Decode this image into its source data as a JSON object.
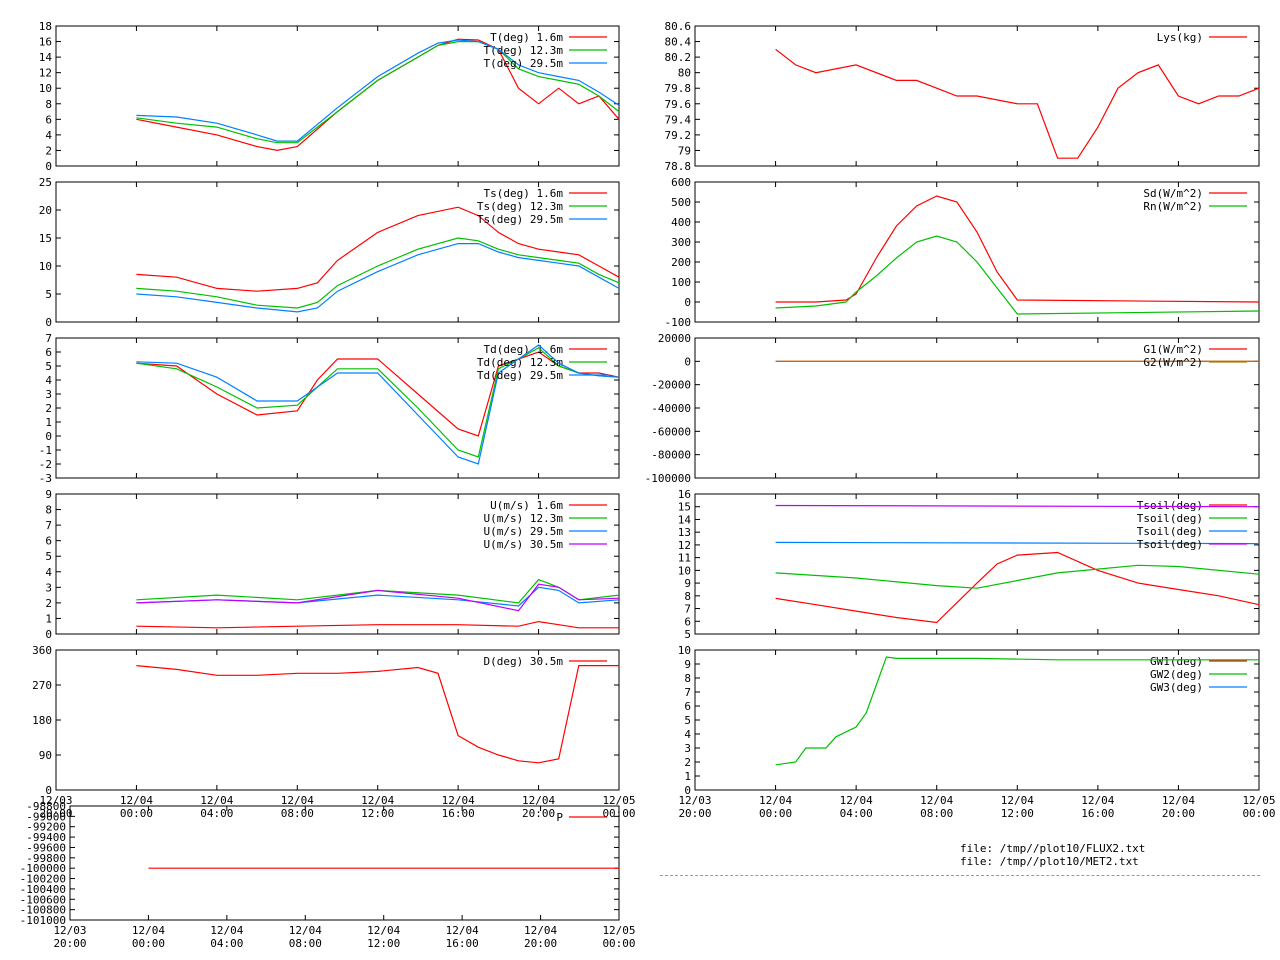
{
  "colors": {
    "red": "#ff0000",
    "green": "#00c000",
    "blue": "#0080ff",
    "purple": "#c000ff",
    "olive": "#a08000"
  },
  "x_ticks": {
    "dates": [
      "12/03",
      "12/04",
      "12/04",
      "12/04",
      "12/04",
      "12/04",
      "12/04",
      "12/05"
    ],
    "times": [
      "20:00",
      "00:00",
      "04:00",
      "08:00",
      "12:00",
      "16:00",
      "20:00",
      "00:00"
    ]
  },
  "files": [
    "file: /tmp//plot10/FLUX2.txt",
    "file: /tmp//plot10/MET2.txt"
  ],
  "chart_data": [
    {
      "id": "T",
      "type": "line",
      "ylim": [
        0,
        18
      ],
      "yticks": [
        "0",
        "2",
        "4",
        "6",
        "8",
        "10",
        "12",
        "14",
        "16",
        "18"
      ],
      "xlim": [
        0,
        28
      ],
      "series": [
        {
          "name": "T(deg)  1.6m",
          "color": "red",
          "x": [
            4,
            6,
            8,
            10,
            11,
            12,
            14,
            16,
            18,
            19,
            20,
            21,
            22,
            23,
            24,
            25,
            26,
            27,
            28
          ],
          "y": [
            6,
            5,
            4,
            2.5,
            2,
            2.5,
            7,
            11,
            14,
            15.5,
            16.3,
            16.2,
            15,
            10,
            8,
            10,
            8,
            9,
            6
          ]
        },
        {
          "name": "T(deg) 12.3m",
          "color": "green",
          "x": [
            4,
            6,
            8,
            10,
            11,
            12,
            14,
            16,
            18,
            19,
            20,
            21,
            22,
            23,
            24,
            25,
            26,
            27,
            28
          ],
          "y": [
            6.2,
            5.5,
            5,
            3.5,
            3,
            3,
            7,
            11,
            14,
            15.5,
            16,
            16,
            15,
            12.5,
            11.5,
            11,
            10.5,
            9,
            7
          ]
        },
        {
          "name": "T(deg) 29.5m",
          "color": "blue",
          "x": [
            4,
            6,
            8,
            10,
            11,
            12,
            14,
            16,
            18,
            19,
            20,
            21,
            22,
            23,
            24,
            25,
            26,
            27,
            28
          ],
          "y": [
            6.5,
            6.3,
            5.5,
            4,
            3.2,
            3.2,
            7.5,
            11.5,
            14.5,
            15.8,
            16.2,
            16,
            15,
            13,
            12,
            11.5,
            11,
            9.5,
            7.8
          ]
        }
      ]
    },
    {
      "id": "Ts",
      "type": "line",
      "ylim": [
        0,
        25
      ],
      "yticks": [
        "0",
        "5",
        "10",
        "15",
        "20",
        "25"
      ],
      "xlim": [
        0,
        28
      ],
      "series": [
        {
          "name": "Ts(deg)  1.6m",
          "color": "red",
          "x": [
            4,
            6,
            8,
            10,
            12,
            13,
            14,
            16,
            18,
            20,
            21,
            22,
            23,
            24,
            25,
            26,
            27,
            28
          ],
          "y": [
            8.5,
            8,
            6,
            5.5,
            6,
            7,
            11,
            16,
            19,
            20.5,
            19,
            16,
            14,
            13,
            12.5,
            12,
            10,
            8
          ]
        },
        {
          "name": "Ts(deg) 12.3m",
          "color": "green",
          "x": [
            4,
            6,
            8,
            10,
            12,
            13,
            14,
            16,
            18,
            20,
            21,
            22,
            23,
            24,
            25,
            26,
            27,
            28
          ],
          "y": [
            6,
            5.5,
            4.5,
            3,
            2.5,
            3.5,
            6.5,
            10,
            13,
            15,
            14.5,
            13,
            12,
            11.5,
            11,
            10.5,
            8.5,
            7
          ]
        },
        {
          "name": "Ts(deg) 29.5m",
          "color": "blue",
          "x": [
            4,
            6,
            8,
            10,
            12,
            13,
            14,
            16,
            18,
            20,
            21,
            22,
            23,
            24,
            25,
            26,
            27,
            28
          ],
          "y": [
            5,
            4.5,
            3.5,
            2.5,
            1.8,
            2.5,
            5.5,
            9,
            12,
            14,
            14,
            12.5,
            11.5,
            11,
            10.5,
            10,
            8,
            6
          ]
        }
      ]
    },
    {
      "id": "Td",
      "type": "line",
      "ylim": [
        -3,
        7
      ],
      "yticks": [
        "-3",
        "-2",
        "-1",
        "0",
        "1",
        "2",
        "3",
        "4",
        "5",
        "6",
        "7"
      ],
      "xlim": [
        0,
        28
      ],
      "series": [
        {
          "name": "Td(deg)  1.6m",
          "color": "red",
          "x": [
            4,
            6,
            8,
            10,
            12,
            13,
            14,
            16,
            18,
            20,
            21,
            22,
            23,
            24,
            25,
            26,
            27,
            28
          ],
          "y": [
            5.2,
            5,
            3,
            1.5,
            1.8,
            4,
            5.5,
            5.5,
            3,
            0.5,
            0,
            5,
            5.5,
            6,
            5,
            4.5,
            4.5,
            4.2
          ]
        },
        {
          "name": "Td(deg) 12.3m",
          "color": "green",
          "x": [
            4,
            6,
            8,
            10,
            12,
            13,
            14,
            16,
            18,
            20,
            21,
            22,
            23,
            24,
            25,
            26,
            27,
            28
          ],
          "y": [
            5.2,
            4.8,
            3.5,
            2,
            2.2,
            3.5,
            4.8,
            4.8,
            2,
            -1,
            -1.5,
            4.8,
            5.5,
            6.3,
            5,
            4.5,
            4.3,
            4.2
          ]
        },
        {
          "name": "Td(deg) 29.5m",
          "color": "blue",
          "x": [
            4,
            6,
            8,
            10,
            12,
            13,
            14,
            16,
            18,
            20,
            21,
            22,
            23,
            24,
            25,
            26,
            27,
            28
          ],
          "y": [
            5.3,
            5.2,
            4.2,
            2.5,
            2.5,
            3.5,
            4.5,
            4.5,
            1.5,
            -1.5,
            -2,
            4.5,
            5.5,
            6.5,
            5.2,
            4.5,
            4.3,
            4.2
          ]
        }
      ]
    },
    {
      "id": "U",
      "type": "line",
      "ylim": [
        0,
        9
      ],
      "yticks": [
        "0",
        "1",
        "2",
        "3",
        "4",
        "5",
        "6",
        "7",
        "8",
        "9"
      ],
      "xlim": [
        0,
        28
      ],
      "series": [
        {
          "name": "U(m/s)  1.6m",
          "color": "red",
          "x": [
            4,
            8,
            12,
            16,
            20,
            23,
            24,
            25,
            26,
            28
          ],
          "y": [
            0.5,
            0.4,
            0.5,
            0.6,
            0.6,
            0.5,
            0.8,
            0.6,
            0.4,
            0.4
          ]
        },
        {
          "name": "U(m/s) 12.3m",
          "color": "green",
          "x": [
            4,
            8,
            12,
            16,
            20,
            23,
            24,
            25,
            26,
            28
          ],
          "y": [
            2.2,
            2.5,
            2.2,
            2.8,
            2.5,
            2,
            3.5,
            3,
            2.2,
            2.5
          ]
        },
        {
          "name": "U(m/s) 29.5m",
          "color": "blue",
          "x": [
            4,
            8,
            12,
            16,
            20,
            23,
            24,
            25,
            26,
            28
          ],
          "y": [
            2,
            2.2,
            2,
            2.5,
            2.2,
            1.8,
            3,
            2.8,
            2,
            2.2
          ]
        },
        {
          "name": "U(m/s) 30.5m",
          "color": "purple",
          "x": [
            4,
            8,
            12,
            16,
            20,
            23,
            24,
            25,
            26,
            28
          ],
          "y": [
            2,
            2.2,
            2,
            2.8,
            2.3,
            1.5,
            3.2,
            3,
            2.2,
            2.3
          ]
        }
      ]
    },
    {
      "id": "D",
      "type": "line",
      "ylim": [
        0,
        360
      ],
      "yticks": [
        "0",
        "90",
        "180",
        "270",
        "360"
      ],
      "xlim": [
        0,
        28
      ],
      "series": [
        {
          "name": "D(deg)  30.5m",
          "color": "red",
          "x": [
            4,
            6,
            8,
            10,
            12,
            14,
            16,
            18,
            19,
            20,
            21,
            22,
            23,
            24,
            25,
            26,
            27,
            28
          ],
          "y": [
            320,
            310,
            295,
            295,
            300,
            300,
            305,
            315,
            300,
            140,
            110,
            90,
            75,
            70,
            80,
            320,
            320,
            320
          ]
        }
      ]
    },
    {
      "id": "P",
      "type": "line",
      "ylim": [
        -101000,
        -98800
      ],
      "yticks": [
        "-101000",
        "-100800",
        "-100600",
        "-100400",
        "-100200",
        "-100000",
        "-99800",
        "-99600",
        "-99400",
        "-99200",
        "-99000",
        "-98800"
      ],
      "xlim": [
        0,
        28
      ],
      "series": [
        {
          "name": "P",
          "color": "red",
          "x": [
            4,
            28
          ],
          "y": [
            -100000,
            -100000
          ]
        }
      ]
    },
    {
      "id": "Lys",
      "type": "line",
      "ylim": [
        78.8,
        80.6
      ],
      "yticks": [
        "78.8",
        "79",
        "79.2",
        "79.4",
        "79.6",
        "79.8",
        "80",
        "80.2",
        "80.4",
        "80.6"
      ],
      "xlim": [
        0,
        28
      ],
      "series": [
        {
          "name": "Lys(kg)",
          "color": "red",
          "x": [
            4,
            5,
            6,
            8,
            10,
            11,
            12,
            13,
            14,
            16,
            17,
            18,
            19,
            20,
            21,
            22,
            23,
            24,
            25,
            26,
            27,
            28
          ],
          "y": [
            80.3,
            80.1,
            80,
            80.1,
            79.9,
            79.9,
            79.8,
            79.7,
            79.7,
            79.6,
            79.6,
            78.9,
            78.9,
            79.3,
            79.8,
            80,
            80.1,
            79.7,
            79.6,
            79.7,
            79.7,
            79.8
          ]
        }
      ]
    },
    {
      "id": "Rad",
      "type": "line",
      "ylim": [
        -100,
        600
      ],
      "yticks": [
        "-100",
        "0",
        "100",
        "200",
        "300",
        "400",
        "500",
        "600"
      ],
      "xlim": [
        0,
        28
      ],
      "series": [
        {
          "name": "Sd(W/m^2)",
          "color": "red",
          "x": [
            4,
            6,
            7.5,
            8,
            9,
            10,
            11,
            12,
            13,
            14,
            15,
            16,
            28
          ],
          "y": [
            0,
            0,
            10,
            40,
            220,
            380,
            480,
            530,
            500,
            350,
            150,
            10,
            0
          ]
        },
        {
          "name": "Rn(W/m^2)",
          "color": "green",
          "x": [
            4,
            6,
            7.5,
            8,
            9,
            10,
            11,
            12,
            13,
            14,
            15,
            16,
            28
          ],
          "y": [
            -30,
            -20,
            0,
            50,
            130,
            220,
            300,
            330,
            300,
            200,
            70,
            -60,
            -45
          ]
        }
      ]
    },
    {
      "id": "G",
      "type": "line",
      "ylim": [
        -100000,
        20000
      ],
      "yticks": [
        "-100000",
        "-80000",
        "-60000",
        "-40000",
        "-20000",
        "0",
        "20000"
      ],
      "xlim": [
        0,
        28
      ],
      "series": [
        {
          "name": "G1(W/m^2)",
          "color": "red",
          "x": [
            4,
            28
          ],
          "y": [
            0,
            0
          ]
        },
        {
          "name": "G2(W/m^2)",
          "color": "olive",
          "x": [
            4,
            28
          ],
          "y": [
            0,
            0
          ]
        }
      ]
    },
    {
      "id": "Tsoil",
      "type": "line",
      "ylim": [
        5,
        16
      ],
      "yticks": [
        "5",
        "6",
        "7",
        "8",
        "9",
        "10",
        "11",
        "12",
        "13",
        "14",
        "15",
        "16"
      ],
      "xlim": [
        0,
        28
      ],
      "series": [
        {
          "name": "Tsoil(deg)",
          "color": "red",
          "x": [
            4,
            6,
            8,
            10,
            12,
            14,
            15,
            16,
            18,
            20,
            22,
            24,
            26,
            28
          ],
          "y": [
            7.8,
            7.3,
            6.8,
            6.3,
            5.9,
            9,
            10.5,
            11.2,
            11.4,
            10,
            9,
            8.5,
            8,
            7.3
          ]
        },
        {
          "name": "Tsoil(deg)",
          "color": "green",
          "x": [
            4,
            8,
            12,
            14,
            18,
            22,
            24,
            28
          ],
          "y": [
            9.8,
            9.4,
            8.8,
            8.6,
            9.8,
            10.4,
            10.3,
            9.7
          ]
        },
        {
          "name": "Tsoil(deg)",
          "color": "blue",
          "x": [
            4,
            28
          ],
          "y": [
            12.2,
            12.1
          ]
        },
        {
          "name": "Tsoil(deg)",
          "color": "purple",
          "x": [
            4,
            28
          ],
          "y": [
            15.1,
            15
          ]
        }
      ]
    },
    {
      "id": "GW",
      "type": "line",
      "ylim": [
        0,
        10
      ],
      "yticks": [
        "0",
        "1",
        "2",
        "3",
        "4",
        "5",
        "6",
        "7",
        "8",
        "9",
        "10"
      ],
      "xlim": [
        0,
        28
      ],
      "series": [
        {
          "name": "GW1(deg)",
          "color": "red",
          "x": [],
          "y": []
        },
        {
          "name": "GW2(deg)",
          "color": "green",
          "x": [
            4,
            5,
            5.5,
            6.5,
            7,
            8,
            8.5,
            9,
            9.5,
            10,
            14,
            18,
            28
          ],
          "y": [
            1.8,
            2,
            3,
            3,
            3.8,
            4.5,
            5.5,
            7.5,
            9.5,
            9.4,
            9.4,
            9.3,
            9.3
          ]
        },
        {
          "name": "GW3(deg)",
          "color": "blue",
          "x": [],
          "y": []
        }
      ]
    }
  ]
}
